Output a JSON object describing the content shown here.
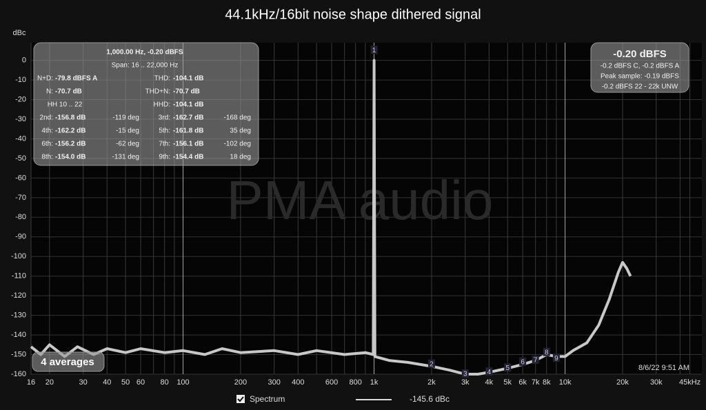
{
  "chart_data": {
    "type": "line",
    "title": "44.1kHz/16bit noise shape dithered signal",
    "y_label": "dBc",
    "watermark": "PMA audio",
    "xscale": "log",
    "grid": true,
    "xlim": [
      16,
      52000
    ],
    "ylim": [
      -160,
      9
    ],
    "yticks": [
      0,
      -10,
      -20,
      -30,
      -40,
      -50,
      -60,
      -70,
      -80,
      -90,
      -100,
      -110,
      -120,
      -130,
      -140,
      -150,
      -160
    ],
    "xticks": [
      16,
      20,
      30,
      40,
      50,
      60,
      80,
      100,
      200,
      300,
      400,
      600,
      800,
      {
        "value": 1000,
        "label": "1k"
      },
      {
        "value": 2000,
        "label": "2k"
      },
      {
        "value": 3000,
        "label": "3k"
      },
      {
        "value": 4000,
        "label": "4k"
      },
      {
        "value": 5000,
        "label": "5k"
      },
      {
        "value": 6000,
        "label": "6k"
      },
      {
        "value": 7000,
        "label": "7k"
      },
      {
        "value": 8000,
        "label": "8k"
      },
      {
        "value": 10000,
        "label": "10k"
      },
      {
        "value": 20000,
        "label": "20k"
      },
      {
        "value": 30000,
        "label": "30k"
      },
      {
        "value": 45000,
        "label": "45kHz"
      }
    ],
    "xgrid_minor": [
      70,
      90,
      500,
      700,
      900,
      9000,
      40000
    ],
    "series": [
      {
        "name": "Spectrum",
        "color": "#c8c8c8",
        "x": [
          16,
          18,
          20,
          24,
          28,
          34,
          40,
          50,
          60,
          80,
          100,
          130,
          160,
          200,
          300,
          400,
          500,
          700,
          900,
          990,
          1000,
          1010,
          1200,
          1500,
          2000,
          2500,
          3000,
          3500,
          4000,
          5000,
          6000,
          7000,
          8000,
          9000,
          10000,
          11000,
          13000,
          15000,
          17000,
          19000,
          20000,
          21000,
          22000
        ],
        "values": [
          -146,
          -150,
          -145,
          -151,
          -146,
          -150,
          -147,
          -149,
          -147,
          -149,
          -148,
          -150,
          -147,
          -149,
          -148,
          -150,
          -148,
          -150,
          -149,
          -150,
          0,
          -151,
          -153,
          -154,
          -156,
          -158,
          -160,
          -160,
          -159,
          -157,
          -155,
          -153,
          -150,
          -151,
          -151,
          -148,
          -144,
          -135,
          -122,
          -108,
          -103,
          -106,
          -110
        ]
      }
    ],
    "legend_readout": "-145.6 dBc",
    "markers": [
      {
        "label": "1",
        "x": 1000,
        "y": 5
      },
      {
        "label": "2",
        "x": 2000,
        "y": -155
      },
      {
        "label": "3",
        "x": 3000,
        "y": -160
      },
      {
        "label": "4",
        "x": 4000,
        "y": -159
      },
      {
        "label": "5",
        "x": 5000,
        "y": -157
      },
      {
        "label": "6",
        "x": 6000,
        "y": -154
      },
      {
        "label": "7",
        "x": 7000,
        "y": -153
      },
      {
        "label": "8",
        "x": 8000,
        "y": -149
      },
      {
        "label": "9",
        "x": 9000,
        "y": -152
      }
    ],
    "info_panel": {
      "header": "1,000.00 Hz, -0.20 dBFS",
      "span": "Span: 16 .. 22,000 Hz",
      "rows": [
        [
          "N+D:",
          "-79.8 dBFS A",
          "THD:",
          "-104.1 dB"
        ],
        [
          "N:",
          "-70.7 dB",
          "THD+N:",
          "-70.7 dB"
        ],
        [
          "HH 10 .. 22",
          "HHD:",
          "-104.1 dB"
        ],
        [
          "2nd:",
          "-156.8 dB",
          "-119 deg",
          "3rd:",
          "-162.7 dB",
          "-168 deg"
        ],
        [
          "4th:",
          "-162.2 dB",
          "-15 deg",
          "5th:",
          "-161.8 dB",
          "35 deg"
        ],
        [
          "6th:",
          "-156.2 dB",
          "-62 deg",
          "7th:",
          "-156.1 dB",
          "-102 deg"
        ],
        [
          "8th:",
          "-154.0 dB",
          "-131 deg",
          "9th:",
          "-154.4 dB",
          "18 deg"
        ]
      ]
    },
    "level_panel": {
      "level": "-0.20 dBFS",
      "lines": [
        "-0.2 dBFS C, -0.2 dBFS A",
        "Peak sample: -0.19 dBFS",
        "-0.2 dBFS 22 - 22k UNW"
      ]
    },
    "averages": "4 averages",
    "timestamp": "8/6/22 9:51 AM"
  }
}
